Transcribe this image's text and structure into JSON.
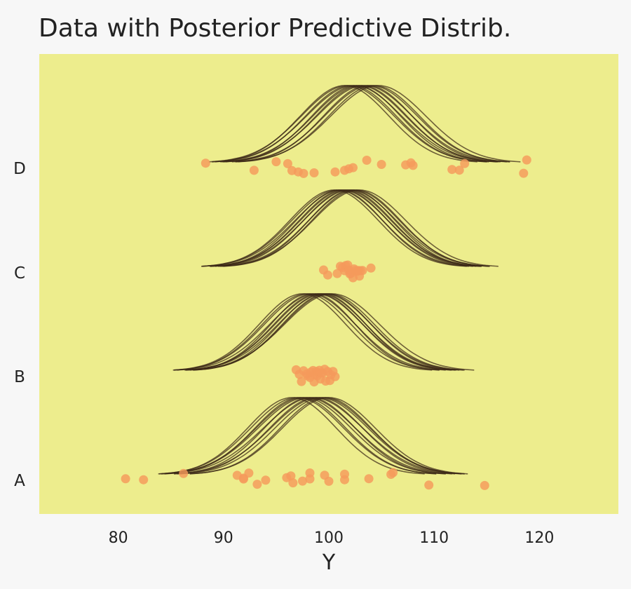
{
  "chart_data": {
    "type": "scatter",
    "title": "Data with Posterior Predictive Distrib.",
    "xlabel": "Y",
    "ylabel": "",
    "xlim": [
      72.5,
      127.5
    ],
    "xticks": [
      80,
      90,
      100,
      110,
      120
    ],
    "grid": false,
    "colors": {
      "page_background": "#f7f7f7",
      "plot_background": "#eded8d",
      "points": "#f59a5c",
      "curves": "#3d2a17"
    },
    "groups": [
      {
        "label": "A",
        "points": [
          80.7,
          82.4,
          86.2,
          91.3,
          91.9,
          91.9,
          92.4,
          93.2,
          94.0,
          96.0,
          96.4,
          96.6,
          97.5,
          98.2,
          98.2,
          99.6,
          100.0,
          101.5,
          101.5,
          103.8,
          105.9,
          106.1,
          109.5,
          114.8
        ],
        "curve_means": [
          96.5,
          97.0,
          97.3,
          97.6,
          97.9,
          98.2,
          98.5,
          98.8,
          99.1,
          99.4,
          99.7,
          100.0
        ],
        "curve_sds": [
          4.2,
          4.4,
          4.3,
          4.5,
          4.6,
          4.3,
          4.7,
          4.4,
          4.6,
          4.5,
          4.3,
          4.4
        ]
      },
      {
        "label": "B",
        "points": [
          96.9,
          97.2,
          97.4,
          97.6,
          97.9,
          98.0,
          98.2,
          98.3,
          98.5,
          98.6,
          98.7,
          98.8,
          98.9,
          99.0,
          99.1,
          99.2,
          99.3,
          99.4,
          99.6,
          99.7,
          99.9,
          100.1,
          100.2,
          100.4,
          100.6
        ],
        "curve_means": [
          97.5,
          97.9,
          98.2,
          98.5,
          98.8,
          99.0,
          99.2,
          99.4,
          99.6,
          99.8,
          100.0,
          100.3
        ],
        "curve_sds": [
          4.1,
          4.2,
          4.3,
          4.0,
          4.4,
          4.2,
          4.3,
          4.1,
          4.4,
          4.2,
          4.3,
          4.5
        ]
      },
      {
        "label": "C",
        "points": [
          99.5,
          99.9,
          100.8,
          101.1,
          101.3,
          101.5,
          101.6,
          101.8,
          101.9,
          102.0,
          102.1,
          102.3,
          102.4,
          102.5,
          102.7,
          102.8,
          102.9,
          103.0,
          103.2,
          104.0
        ],
        "curve_means": [
          100.5,
          100.8,
          101.0,
          101.2,
          101.4,
          101.6,
          101.8,
          102.0,
          102.2,
          102.4,
          102.6,
          102.9
        ],
        "curve_sds": [
          4.2,
          4.3,
          4.1,
          4.4,
          4.2,
          4.3,
          4.2,
          4.4,
          4.1,
          4.3,
          4.2,
          4.4
        ]
      },
      {
        "label": "D",
        "points": [
          88.3,
          92.9,
          95.0,
          96.1,
          96.5,
          97.1,
          97.6,
          98.6,
          100.6,
          101.5,
          101.9,
          102.3,
          103.6,
          105.0,
          107.3,
          107.8,
          108.0,
          111.7,
          112.4,
          112.9,
          118.5,
          118.8
        ],
        "curve_means": [
          101.5,
          101.8,
          102.1,
          102.4,
          102.6,
          102.9,
          103.1,
          103.4,
          103.7,
          104.0,
          104.3,
          104.7
        ],
        "curve_sds": [
          4.2,
          4.4,
          4.3,
          4.5,
          4.2,
          4.4,
          4.3,
          4.5,
          4.2,
          4.4,
          4.3,
          4.5
        ]
      }
    ]
  }
}
